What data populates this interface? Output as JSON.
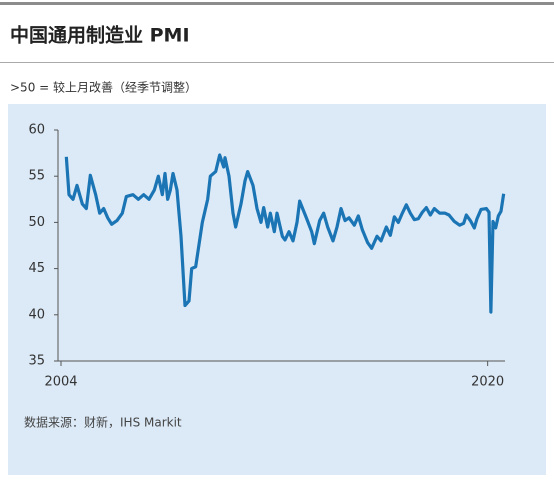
{
  "chart_data": {
    "type": "line",
    "title": "中国通用制造业 PMI",
    "subtitle": ">50 = 较上月改善（经季节调整）",
    "source": "数据来源：财新，IHS Markit",
    "x": [
      2004.2,
      2004.3,
      2004.45,
      2004.6,
      2004.8,
      2004.95,
      2005.1,
      2005.3,
      2005.45,
      2005.6,
      2005.75,
      2005.9,
      2006.1,
      2006.3,
      2006.45,
      2006.7,
      2006.9,
      2007.1,
      2007.3,
      2007.5,
      2007.65,
      2007.8,
      2007.9,
      2008.0,
      2008.1,
      2008.2,
      2008.35,
      2008.5,
      2008.65,
      2008.8,
      2008.9,
      2009.05,
      2009.3,
      2009.5,
      2009.6,
      2009.8,
      2009.95,
      2010.1,
      2010.15,
      2010.3,
      2010.45,
      2010.55,
      2010.75,
      2010.9,
      2011.0,
      2011.2,
      2011.35,
      2011.5,
      2011.6,
      2011.75,
      2011.85,
      2012.0,
      2012.1,
      2012.3,
      2012.4,
      2012.55,
      2012.7,
      2012.85,
      2012.95,
      2013.2,
      2013.4,
      2013.5,
      2013.7,
      2013.85,
      2014.0,
      2014.2,
      2014.35,
      2014.5,
      2014.65,
      2014.8,
      2015.0,
      2015.15,
      2015.3,
      2015.5,
      2015.65,
      2015.85,
      2016.0,
      2016.2,
      2016.35,
      2016.5,
      2016.65,
      2016.8,
      2016.95,
      2017.1,
      2017.25,
      2017.4,
      2017.55,
      2017.7,
      2017.85,
      2018.0,
      2018.2,
      2018.4,
      2018.55,
      2018.75,
      2018.95,
      2019.1,
      2019.2,
      2019.35,
      2019.5,
      2019.6,
      2019.75,
      2019.95,
      2020.05,
      2020.12,
      2020.2,
      2020.3,
      2020.4,
      2020.5,
      2020.6
    ],
    "series": [
      {
        "color": "#1b75b5",
        "values": [
          57.1,
          53,
          52.5,
          54,
          52,
          51.5,
          55.1,
          53,
          51,
          51.5,
          50.5,
          49.8,
          50.2,
          51,
          52.8,
          53,
          52.5,
          53,
          52.5,
          53.5,
          55,
          53,
          55.3,
          52.5,
          53.5,
          55.3,
          53.5,
          48.5,
          41,
          41.5,
          45,
          45.2,
          50,
          52.5,
          55,
          55.5,
          57.3,
          56,
          57,
          55,
          51,
          49.5,
          52,
          54.5,
          55.5,
          54,
          51.5,
          50,
          51.6,
          49.5,
          51,
          49,
          51,
          48.5,
          48.1,
          49,
          48,
          50,
          52.3,
          50.5,
          49,
          47.7,
          50.2,
          51,
          49.5,
          48,
          49.5,
          51.5,
          50.2,
          50.5,
          49.7,
          50.7,
          49.2,
          47.8,
          47.2,
          48.5,
          48,
          49.5,
          48.6,
          50.6,
          50,
          51,
          51.9,
          51,
          50.3,
          50.4,
          51.1,
          51.6,
          50.8,
          51.5,
          51,
          51,
          50.8,
          50.1,
          49.7,
          49.9,
          50.8,
          50.2,
          49.4,
          50.4,
          51.4,
          51.5,
          51.1,
          40.3,
          50.1,
          49.4,
          50.7,
          51.2,
          53.1
        ]
      }
    ],
    "xlim": [
      2004,
      2020.65
    ],
    "xticks": [
      2004,
      2020
    ],
    "ylim": [
      35,
      60
    ],
    "yticks": [
      35,
      40,
      45,
      50,
      55,
      60
    ]
  }
}
